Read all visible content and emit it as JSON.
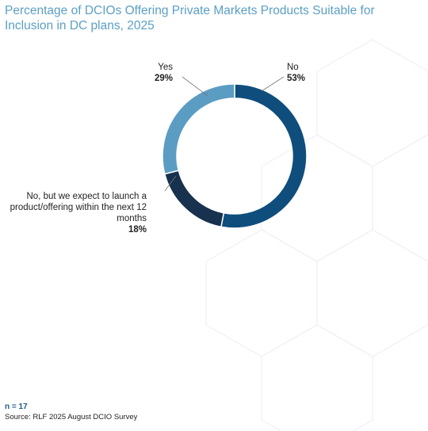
{
  "chart_data": {
    "type": "pie",
    "title": "Percentage of DCIOs Offering Private Markets Products Suitable for Inclusion in DC plans, 2025",
    "unit": "%",
    "donut": true,
    "slices": [
      {
        "label": "No",
        "value": 53,
        "display": "53%",
        "color": "#0f4d7c"
      },
      {
        "label": "No, but we expect to launch a product/offering within the next 12 months",
        "value": 18,
        "display": "18%",
        "color": "#17314f"
      },
      {
        "label": "Yes",
        "value": 29,
        "display": "29%",
        "color": "#5b9cc3"
      }
    ]
  },
  "footer": {
    "n": "n = 17",
    "source": "Source: RLF 2025 August DCIO Survey"
  }
}
